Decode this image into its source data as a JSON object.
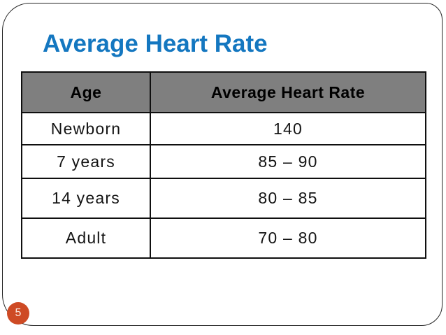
{
  "slide": {
    "title": "Average Heart Rate",
    "page_number": "5"
  },
  "table": {
    "columns": [
      "Age",
      "Average Heart Rate"
    ],
    "rows": [
      {
        "age": "Newborn",
        "rate": "140"
      },
      {
        "age": "7 years",
        "rate": "85 – 90"
      },
      {
        "age": "14 years",
        "rate": "80 – 85"
      },
      {
        "age": "Adult",
        "rate": "70 – 80"
      }
    ]
  },
  "colors": {
    "title_blue": "#1477C0",
    "header_gray": "#7F7F7F",
    "badge_orange": "#CE4A24",
    "table_border": "#0F0F0F",
    "frame_border": "#262626"
  },
  "chart_data": {
    "type": "table",
    "title": "Average Heart Rate",
    "columns": [
      "Age",
      "Average Heart Rate"
    ],
    "rows": [
      [
        "Newborn",
        "140"
      ],
      [
        "7 years",
        "85 – 90"
      ],
      [
        "14 years",
        "80 – 85"
      ],
      [
        "Adult",
        "70 – 80"
      ]
    ]
  }
}
